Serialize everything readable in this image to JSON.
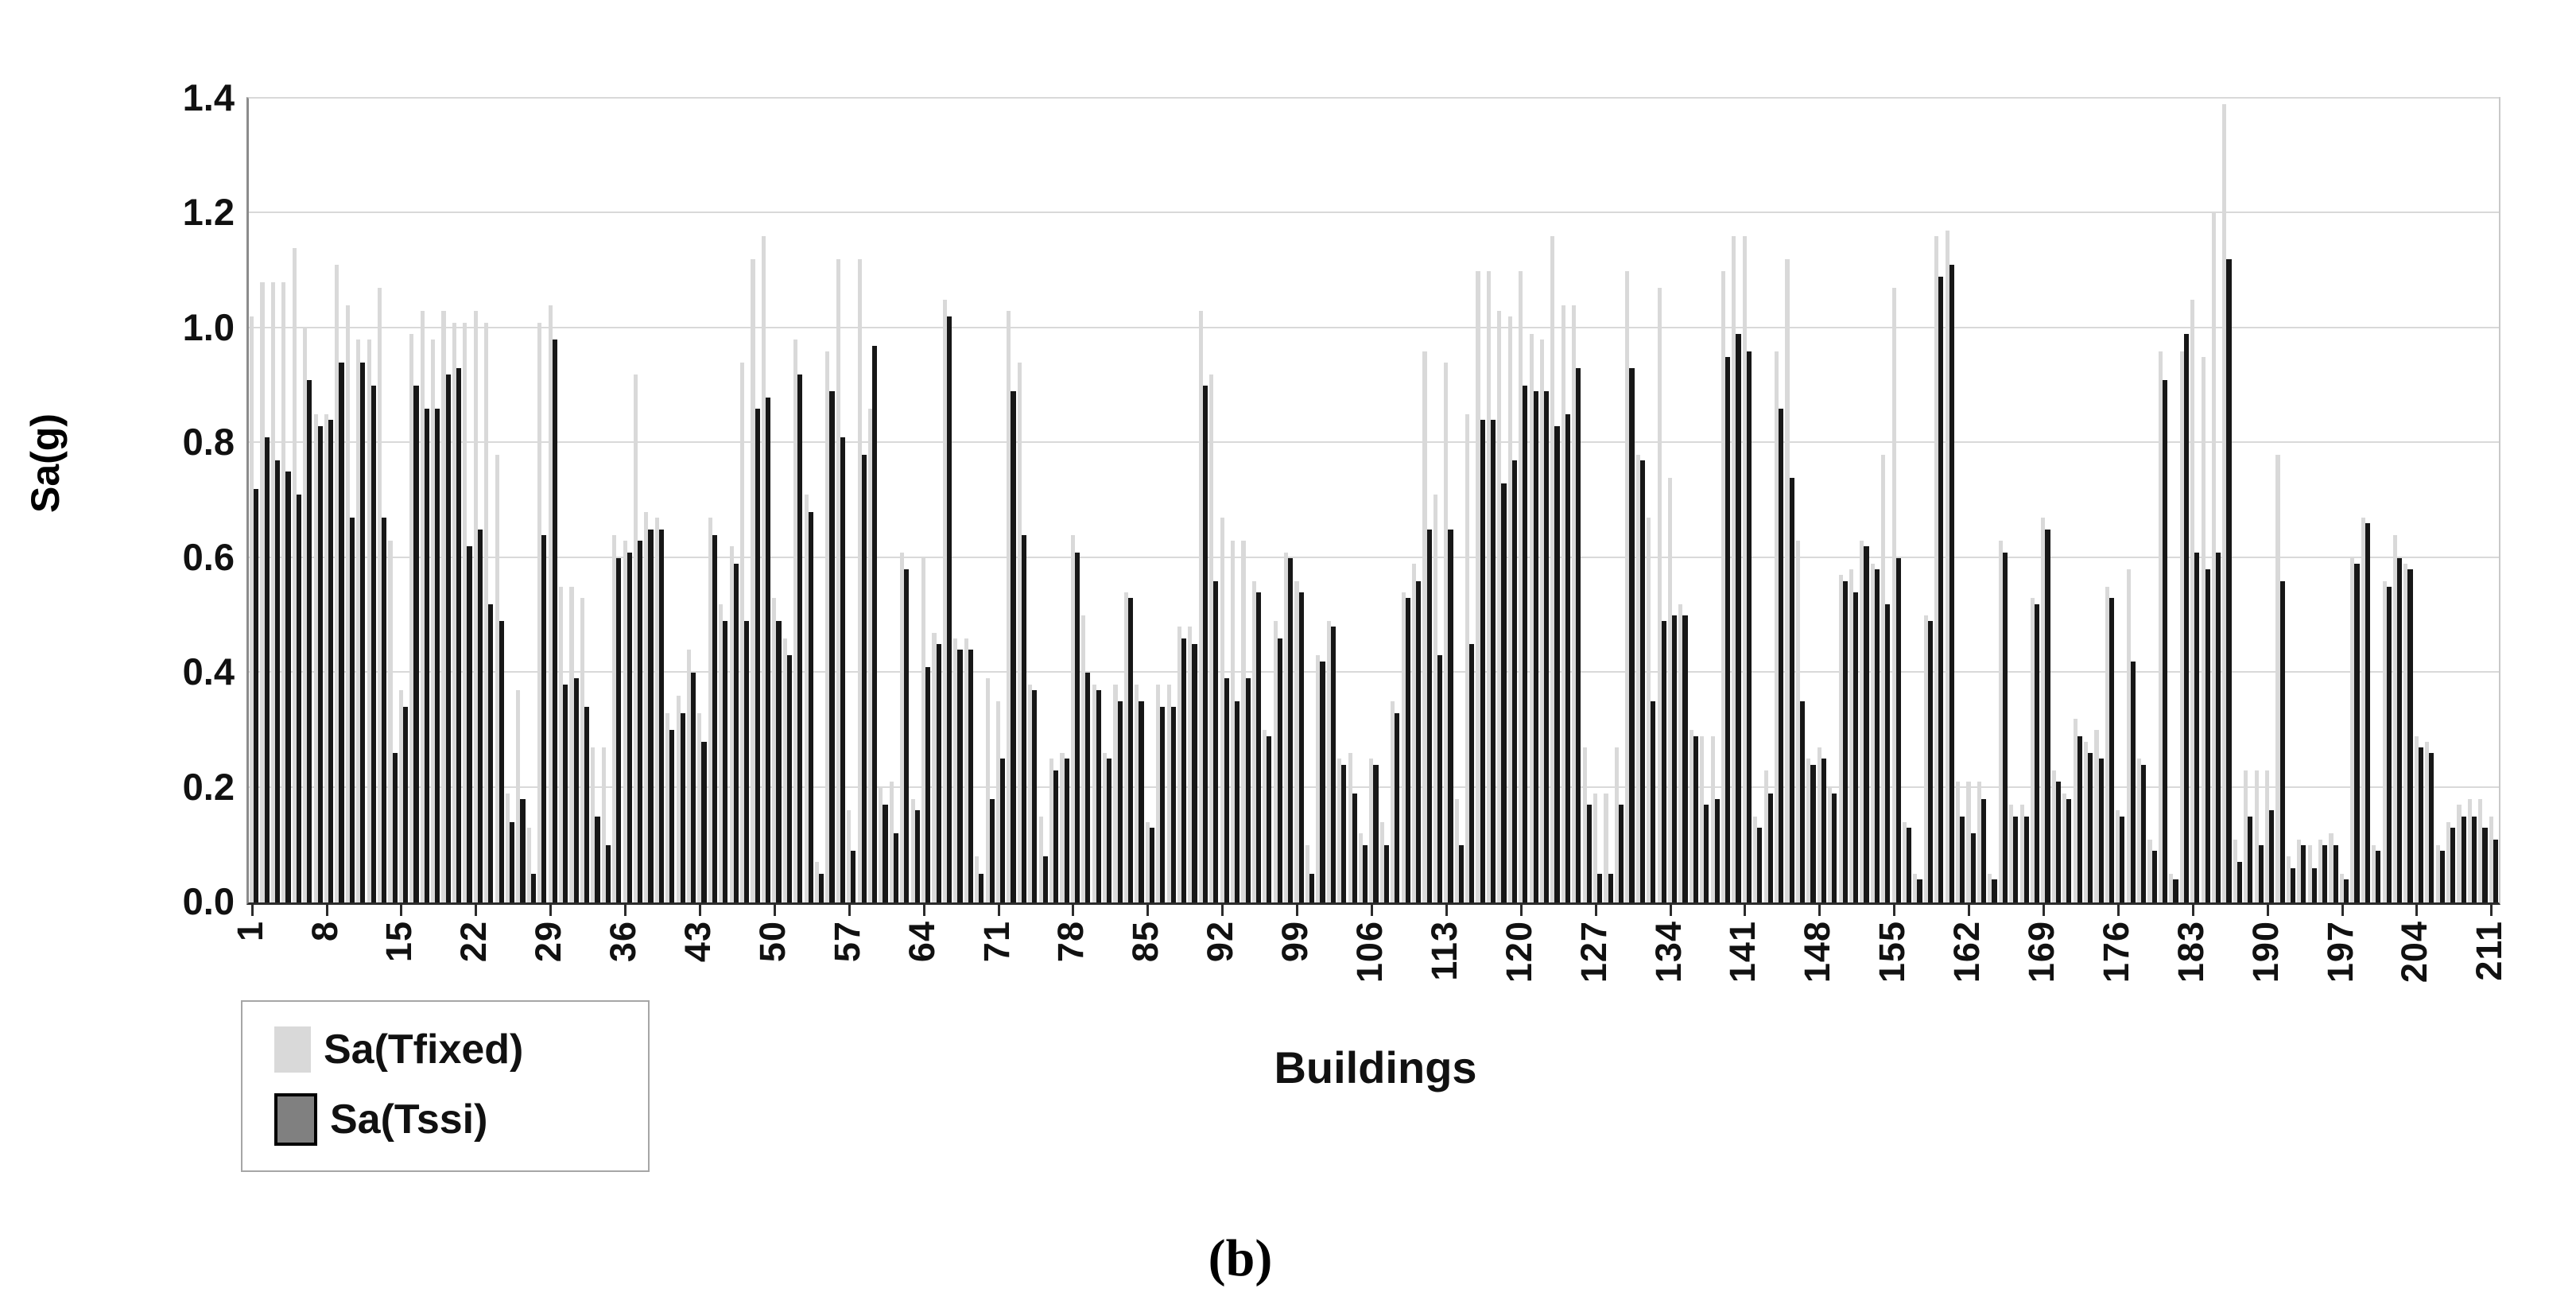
{
  "figure": {
    "caption": "(b)"
  },
  "chart_data": {
    "type": "bar",
    "title": "",
    "xlabel": "Buildings",
    "ylabel": "Sa(g)",
    "ylim": [
      0,
      1.4
    ],
    "ytick_step": 0.2,
    "ytick_labels": [
      "0.0",
      "0.2",
      "0.4",
      "0.6",
      "0.8",
      "1.0",
      "1.2",
      "1.4"
    ],
    "n_buildings": 211,
    "xtick_labels": [
      1,
      8,
      15,
      22,
      29,
      36,
      43,
      50,
      57,
      64,
      71,
      78,
      85,
      92,
      99,
      106,
      113,
      120,
      127,
      134,
      141,
      148,
      155,
      162,
      169,
      176,
      183,
      190,
      197,
      204,
      211
    ],
    "grid": true,
    "legend_position": "bottom-left",
    "colors": {
      "tfixed_fill": "#d9d9d9",
      "tssi_fill": "#171717",
      "tssi_legend_fill": "#808080",
      "tssi_legend_border": "#000000",
      "gridline": "#d9d9d9",
      "axis": "#2b2b2b"
    },
    "series": [
      {
        "name": "Sa(Tfixed)",
        "values": [
          1.02,
          1.08,
          1.08,
          1.08,
          1.14,
          1.0,
          0.85,
          0.85,
          1.11,
          1.04,
          0.98,
          0.98,
          1.07,
          0.63,
          0.37,
          0.99,
          1.03,
          0.98,
          1.03,
          1.01,
          1.01,
          1.03,
          1.01,
          0.78,
          0.19,
          0.37,
          0.13,
          1.01,
          1.04,
          0.55,
          0.55,
          0.53,
          0.27,
          0.27,
          0.64,
          0.63,
          0.92,
          0.68,
          0.67,
          0.33,
          0.36,
          0.44,
          0.33,
          0.67,
          0.52,
          0.62,
          0.94,
          1.12,
          1.16,
          0.53,
          0.46,
          0.98,
          0.71,
          0.07,
          0.96,
          1.12,
          0.16,
          1.12,
          0.86,
          0.2,
          0.21,
          0.61,
          0.18,
          0.6,
          0.47,
          1.05,
          0.46,
          0.46,
          0.08,
          0.39,
          0.35,
          1.03,
          0.94,
          0.38,
          0.15,
          0.25,
          0.26,
          0.64,
          0.5,
          0.38,
          0.26,
          0.38,
          0.54,
          0.38,
          0.14,
          0.38,
          0.38,
          0.48,
          0.48,
          1.03,
          0.92,
          0.67,
          0.63,
          0.63,
          0.56,
          0.3,
          0.49,
          0.61,
          0.56,
          0.1,
          0.43,
          0.49,
          0.25,
          0.26,
          0.12,
          0.25,
          0.14,
          0.35,
          0.54,
          0.59,
          0.96,
          0.71,
          0.94,
          0.18,
          0.85,
          1.1,
          1.1,
          1.03,
          1.02,
          1.1,
          0.99,
          0.98,
          1.16,
          1.04,
          1.04,
          0.27,
          0.19,
          0.19,
          0.27,
          1.1,
          0.78,
          0.67,
          1.07,
          0.74,
          0.52,
          0.3,
          0.29,
          0.29,
          1.1,
          1.16,
          1.16,
          0.15,
          0.23,
          0.96,
          1.12,
          0.63,
          0.25,
          0.27,
          0.2,
          0.57,
          0.58,
          0.63,
          0.59,
          0.78,
          1.07,
          0.14,
          0.05,
          0.5,
          1.16,
          1.17,
          0.21,
          0.21,
          0.21,
          0.05,
          0.63,
          0.17,
          0.17,
          0.53,
          0.67,
          0.23,
          0.19,
          0.32,
          0.28,
          0.3,
          0.55,
          0.16,
          0.58,
          0.25,
          0.11,
          0.96,
          0.05,
          0.96,
          1.05,
          0.95,
          1.2,
          1.39,
          0.11,
          0.23,
          0.23,
          0.23,
          0.78,
          0.08,
          0.11,
          0.1,
          0.11,
          0.12,
          0.05,
          0.6,
          0.67,
          0.1,
          0.56,
          0.64,
          0.59,
          0.29,
          0.28,
          0.1,
          0.14,
          0.17,
          0.18,
          0.18,
          0.15
        ]
      },
      {
        "name": "Sa(Tssi)",
        "values": [
          0.72,
          0.81,
          0.77,
          0.75,
          0.71,
          0.91,
          0.83,
          0.84,
          0.94,
          0.67,
          0.94,
          0.9,
          0.67,
          0.26,
          0.34,
          0.9,
          0.86,
          0.86,
          0.92,
          0.93,
          0.62,
          0.65,
          0.52,
          0.49,
          0.14,
          0.18,
          0.05,
          0.64,
          0.98,
          0.38,
          0.39,
          0.34,
          0.15,
          0.1,
          0.6,
          0.61,
          0.63,
          0.65,
          0.65,
          0.3,
          0.33,
          0.4,
          0.28,
          0.64,
          0.49,
          0.59,
          0.49,
          0.86,
          0.88,
          0.49,
          0.43,
          0.92,
          0.68,
          0.05,
          0.89,
          0.81,
          0.09,
          0.78,
          0.97,
          0.17,
          0.12,
          0.58,
          0.16,
          0.41,
          0.45,
          1.02,
          0.44,
          0.44,
          0.05,
          0.18,
          0.25,
          0.89,
          0.64,
          0.37,
          0.08,
          0.23,
          0.25,
          0.61,
          0.4,
          0.37,
          0.25,
          0.35,
          0.53,
          0.35,
          0.13,
          0.34,
          0.34,
          0.46,
          0.45,
          0.9,
          0.56,
          0.39,
          0.35,
          0.39,
          0.54,
          0.29,
          0.46,
          0.6,
          0.54,
          0.05,
          0.42,
          0.48,
          0.24,
          0.19,
          0.1,
          0.24,
          0.1,
          0.33,
          0.53,
          0.56,
          0.65,
          0.43,
          0.65,
          0.1,
          0.45,
          0.84,
          0.84,
          0.73,
          0.77,
          0.9,
          0.89,
          0.89,
          0.83,
          0.85,
          0.93,
          0.17,
          0.05,
          0.05,
          0.17,
          0.93,
          0.77,
          0.35,
          0.49,
          0.5,
          0.5,
          0.29,
          0.17,
          0.18,
          0.95,
          0.99,
          0.96,
          0.13,
          0.19,
          0.86,
          0.74,
          0.35,
          0.24,
          0.25,
          0.19,
          0.56,
          0.54,
          0.62,
          0.58,
          0.52,
          0.6,
          0.13,
          0.04,
          0.49,
          1.09,
          1.11,
          0.15,
          0.12,
          0.18,
          0.04,
          0.61,
          0.15,
          0.15,
          0.52,
          0.65,
          0.21,
          0.18,
          0.29,
          0.26,
          0.25,
          0.53,
          0.15,
          0.42,
          0.24,
          0.09,
          0.91,
          0.04,
          0.99,
          0.61,
          0.58,
          0.61,
          1.12,
          0.07,
          0.15,
          0.1,
          0.16,
          0.56,
          0.06,
          0.1,
          0.06,
          0.1,
          0.1,
          0.04,
          0.59,
          0.66,
          0.09,
          0.55,
          0.6,
          0.58,
          0.27,
          0.26,
          0.09,
          0.13,
          0.15,
          0.15,
          0.13,
          0.11
        ]
      }
    ]
  }
}
